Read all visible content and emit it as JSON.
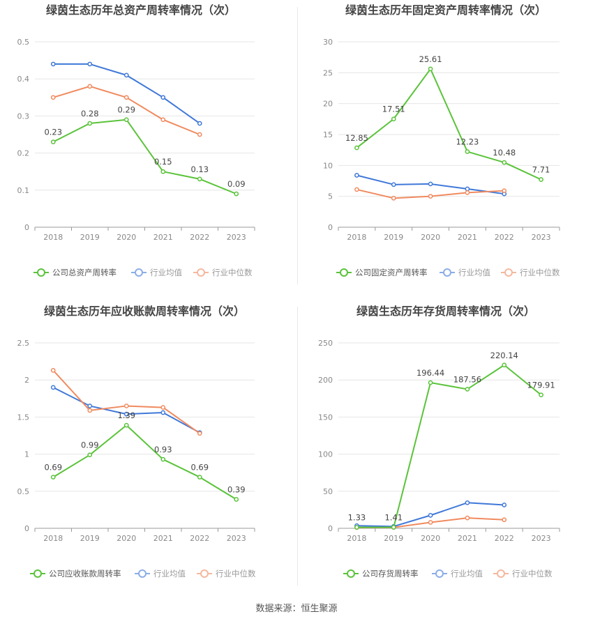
{
  "colors": {
    "company": "#5ac33a",
    "avg": "#3f78d8",
    "median": "#f08a5e"
  },
  "legend": {
    "avg": "行业均值",
    "median": "行业中位数"
  },
  "footer": {
    "source": "数据来源：恒生聚源"
  },
  "chart_data": [
    {
      "type": "line",
      "title": "绿茵生态历年总资产周转率情况（次）",
      "x": [
        "2018",
        "2019",
        "2020",
        "2021",
        "2022",
        "2023"
      ],
      "ylim": [
        0,
        0.5
      ],
      "yticks": [
        "0",
        "0.1",
        "0.2",
        "0.3",
        "0.4",
        "0.5"
      ],
      "series": [
        {
          "name": "公司总资产周转率",
          "role": "company",
          "values": [
            0.23,
            0.28,
            0.29,
            0.15,
            0.13,
            0.09
          ],
          "labels": [
            "0.23",
            "0.28",
            "0.29",
            "0.15",
            "0.13",
            "0.09"
          ]
        },
        {
          "name": "行业均值",
          "role": "avg",
          "values": [
            0.44,
            0.44,
            0.41,
            0.35,
            0.28,
            null
          ]
        },
        {
          "name": "行业中位数",
          "role": "median",
          "values": [
            0.35,
            0.38,
            0.35,
            0.29,
            0.25,
            null
          ]
        }
      ]
    },
    {
      "type": "line",
      "title": "绿茵生态历年固定资产周转率情况（次）",
      "x": [
        "2018",
        "2019",
        "2020",
        "2021",
        "2022",
        "2023"
      ],
      "ylim": [
        0,
        30
      ],
      "yticks": [
        "0",
        "5",
        "10",
        "15",
        "20",
        "25",
        "30"
      ],
      "series": [
        {
          "name": "公司固定资产周转率",
          "role": "company",
          "values": [
            12.85,
            17.51,
            25.61,
            12.23,
            10.48,
            7.71
          ],
          "labels": [
            "12.85",
            "17.51",
            "25.61",
            "12.23",
            "10.48",
            "7.71"
          ]
        },
        {
          "name": "行业均值",
          "role": "avg",
          "values": [
            8.4,
            6.9,
            7.0,
            6.2,
            5.4,
            null
          ]
        },
        {
          "name": "行业中位数",
          "role": "median",
          "values": [
            6.1,
            4.7,
            5.0,
            5.6,
            5.9,
            null
          ]
        }
      ]
    },
    {
      "type": "line",
      "title": "绿茵生态历年应收账款周转率情况（次）",
      "x": [
        "2018",
        "2019",
        "2020",
        "2021",
        "2022",
        "2023"
      ],
      "ylim": [
        0,
        2.5
      ],
      "yticks": [
        "0",
        "0.5",
        "1",
        "1.5",
        "2",
        "2.5"
      ],
      "series": [
        {
          "name": "公司应收账款周转率",
          "role": "company",
          "values": [
            0.69,
            0.99,
            1.39,
            0.93,
            0.69,
            0.39
          ],
          "labels": [
            "0.69",
            "0.99",
            "1.39",
            "0.93",
            "0.69",
            "0.39"
          ]
        },
        {
          "name": "行业均值",
          "role": "avg",
          "values": [
            1.9,
            1.65,
            1.54,
            1.56,
            1.29,
            null
          ]
        },
        {
          "name": "行业中位数",
          "role": "median",
          "values": [
            2.13,
            1.59,
            1.65,
            1.63,
            1.28,
            null
          ]
        }
      ]
    },
    {
      "type": "line",
      "title": "绿茵生态历年存货周转率情况（次）",
      "x": [
        "2018",
        "2019",
        "2020",
        "2021",
        "2022",
        "2023"
      ],
      "ylim": [
        0,
        250
      ],
      "yticks": [
        "0",
        "50",
        "100",
        "150",
        "200",
        "250"
      ],
      "series": [
        {
          "name": "公司存货周转率",
          "role": "company",
          "values": [
            1.33,
            1.41,
            196.44,
            187.56,
            220.14,
            179.91
          ],
          "labels": [
            "1.33",
            "1.41",
            "196.44",
            "187.56",
            "220.14",
            "179.91"
          ]
        },
        {
          "name": "行业均值",
          "role": "avg",
          "values": [
            3.5,
            2.5,
            17.5,
            34.5,
            31.5,
            null
          ]
        },
        {
          "name": "行业中位数",
          "role": "median",
          "values": [
            1.0,
            1.2,
            8.0,
            14.0,
            11.5,
            null
          ]
        }
      ]
    }
  ]
}
